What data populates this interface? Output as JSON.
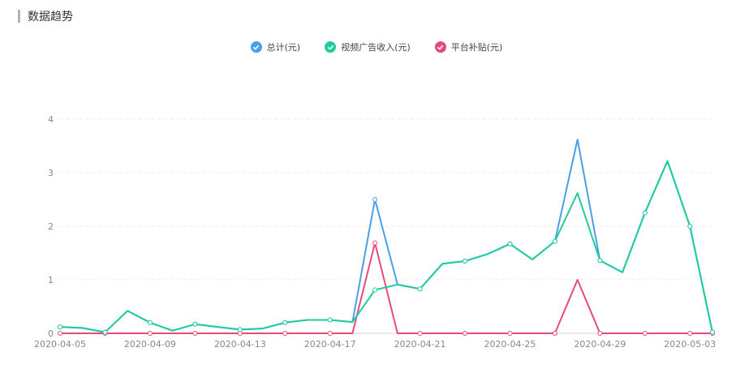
{
  "header": {
    "title": "数据趋势"
  },
  "colors": {
    "total": "#4a9fe8",
    "video": "#1fcc9e",
    "subsidy": "#e84a7a"
  },
  "chart_data": {
    "type": "line",
    "x": [
      "2020-04-05",
      "2020-04-06",
      "2020-04-07",
      "2020-04-08",
      "2020-04-09",
      "2020-04-10",
      "2020-04-11",
      "2020-04-12",
      "2020-04-13",
      "2020-04-14",
      "2020-04-15",
      "2020-04-16",
      "2020-04-17",
      "2020-04-18",
      "2020-04-19",
      "2020-04-20",
      "2020-04-21",
      "2020-04-22",
      "2020-04-23",
      "2020-04-24",
      "2020-04-25",
      "2020-04-26",
      "2020-04-27",
      "2020-04-28",
      "2020-04-29",
      "2020-04-30",
      "2020-05-01",
      "2020-05-02",
      "2020-05-03",
      "2020-05-04"
    ],
    "xtick_labels": [
      "2020-04-05",
      "2020-04-09",
      "2020-04-13",
      "2020-04-17",
      "2020-04-21",
      "2020-04-25",
      "2020-04-29",
      "2020-05-03"
    ],
    "yticks": [
      0,
      1,
      2,
      3,
      4
    ],
    "ylim": [
      0,
      4
    ],
    "grid": true,
    "legend_position": "top-center",
    "series": [
      {
        "name": "总计(元)",
        "color_key": "total",
        "values": [
          0.12,
          0.1,
          0.02,
          0.42,
          0.2,
          0.05,
          0.17,
          0.12,
          0.07,
          0.09,
          0.2,
          0.25,
          0.25,
          0.21,
          2.5,
          0.91,
          0.83,
          1.3,
          1.35,
          1.48,
          1.67,
          1.38,
          1.72,
          3.62,
          1.36,
          1.14,
          2.25,
          3.22,
          2.0,
          0.02
        ]
      },
      {
        "name": "视频广告收入(元)",
        "color_key": "video",
        "values": [
          0.12,
          0.1,
          0.02,
          0.42,
          0.2,
          0.05,
          0.17,
          0.12,
          0.07,
          0.09,
          0.2,
          0.25,
          0.25,
          0.21,
          0.81,
          0.91,
          0.83,
          1.3,
          1.35,
          1.48,
          1.67,
          1.38,
          1.72,
          2.62,
          1.36,
          1.14,
          2.25,
          3.22,
          2.0,
          0.02
        ]
      },
      {
        "name": "平台补贴(元)",
        "color_key": "subsidy",
        "values": [
          0,
          0,
          0,
          0,
          0,
          0,
          0,
          0,
          0,
          0,
          0,
          0,
          0,
          0,
          1.69,
          0,
          0,
          0,
          0,
          0,
          0,
          0,
          0,
          1.0,
          0,
          0,
          0,
          0,
          0,
          0
        ]
      }
    ]
  }
}
